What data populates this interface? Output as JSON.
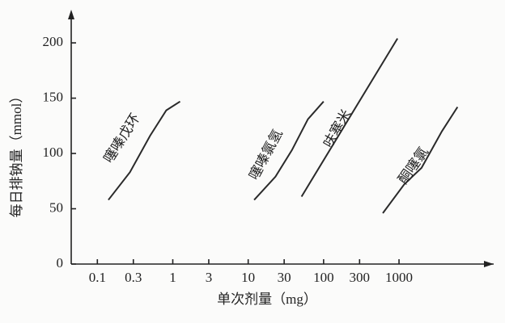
{
  "chart_data": {
    "type": "line",
    "x_label": "单次剂量（mg）",
    "y_label": "每日排钠量（mmol）",
    "xscale": "log",
    "xlim": [
      0.045,
      18000
    ],
    "xticks": [
      0.1,
      0.3,
      1,
      3,
      10,
      30,
      100,
      300,
      1000
    ],
    "ylim": [
      0,
      230
    ],
    "yticks": [
      0,
      50,
      100,
      150,
      200
    ],
    "color": "#2a2a2a",
    "series": [
      {
        "name": "噻嗪戊环",
        "x": [
          0.14,
          0.27,
          0.5,
          0.82,
          1.25
        ],
        "values": [
          58,
          83,
          116,
          139,
          147
        ]
      },
      {
        "name": "噻嗪氯氢",
        "x": [
          12,
          23,
          38,
          62,
          100
        ],
        "values": [
          58,
          79,
          103,
          131,
          147
        ]
      },
      {
        "name": "呋塞米",
        "x": [
          51,
          955
        ],
        "values": [
          61,
          204
        ]
      },
      {
        "name": "酮噻氯",
        "x": [
          610,
          1170,
          1990,
          3700,
          5970
        ],
        "values": [
          46,
          72,
          87,
          120,
          142
        ]
      }
    ]
  }
}
